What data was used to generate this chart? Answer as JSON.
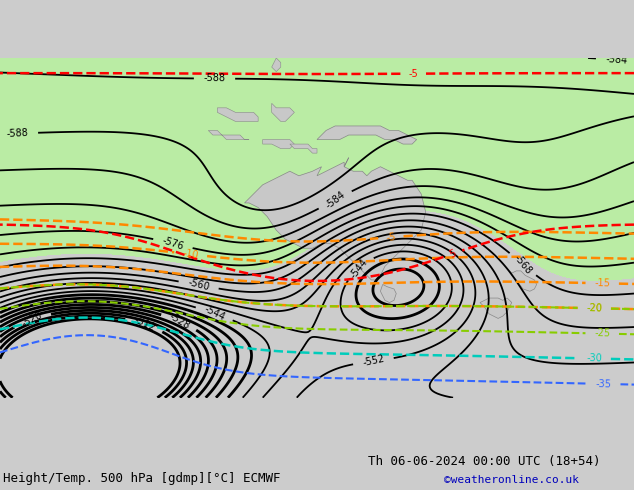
{
  "title_left": "Height/Temp. 500 hPa [gdmp][°C] ECMWF",
  "title_right": "Th 06-06-2024 00:00 UTC (18+54)",
  "credit": "©weatheronline.co.uk",
  "bg_color": "#cccccc",
  "map_bg": "#e0e0e0",
  "land_color": "#c8c8c8",
  "green_fill": "#b8f0a0",
  "font_size_title": 9,
  "font_size_credit": 8
}
